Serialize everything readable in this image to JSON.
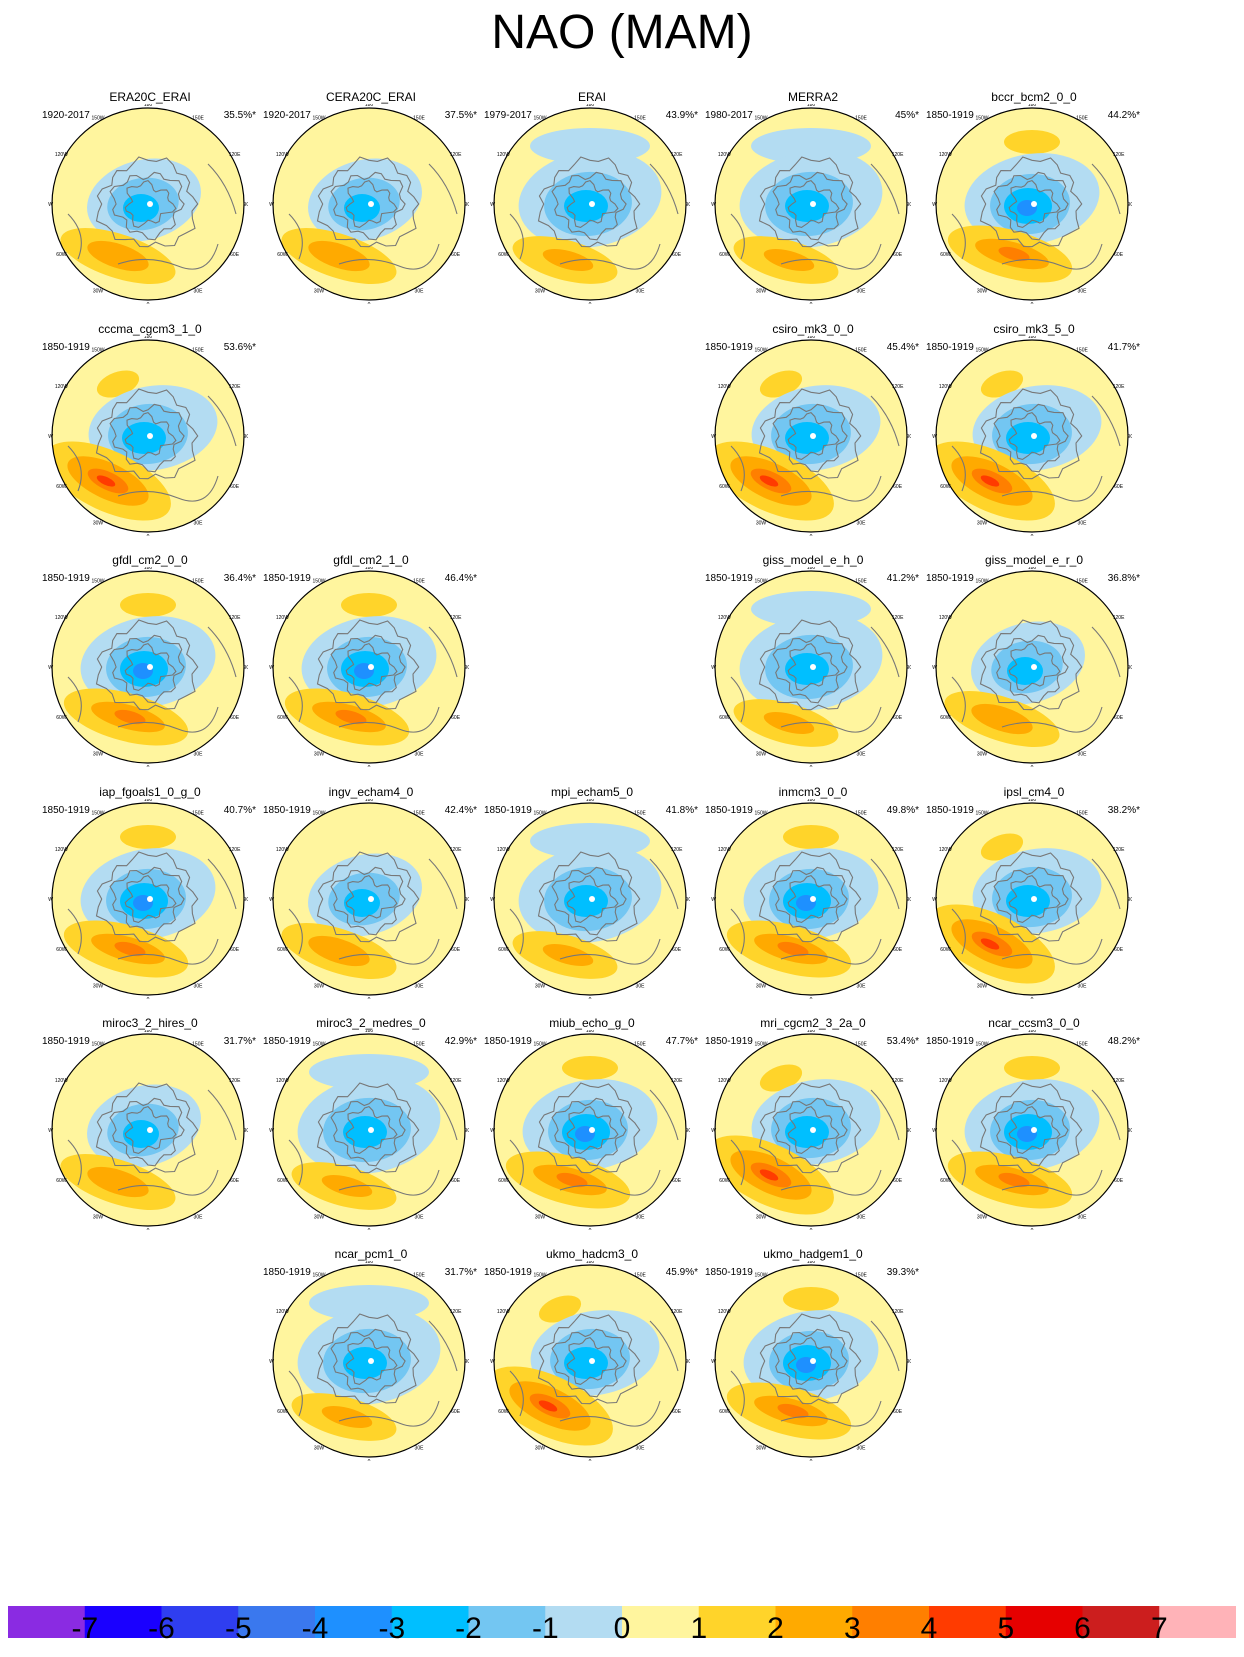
{
  "title": "NAO (MAM)",
  "panels": [
    {
      "name": "ERA20C_ERAI",
      "period": "1920-2017",
      "pct": "35.5%*",
      "row": 0,
      "col": 0,
      "variant": 1
    },
    {
      "name": "CERA20C_ERAI",
      "period": "1920-2017",
      "pct": "37.5%*",
      "row": 0,
      "col": 1,
      "variant": 1
    },
    {
      "name": "ERAI",
      "period": "1979-2017",
      "pct": "43.9%*",
      "row": 0,
      "col": 2,
      "variant": 2
    },
    {
      "name": "MERRA2",
      "period": "1980-2017",
      "pct": "45%*",
      "row": 0,
      "col": 3,
      "variant": 2
    },
    {
      "name": "bccr_bcm2_0_0",
      "period": "1850-1919",
      "pct": "44.2%*",
      "row": 0,
      "col": 4,
      "variant": 3
    },
    {
      "name": "cccma_cgcm3_1_0",
      "period": "1850-1919",
      "pct": "53.6%*",
      "row": 1,
      "col": 0,
      "variant": 4
    },
    {
      "name": "csiro_mk3_0_0",
      "period": "1850-1919",
      "pct": "45.4%*",
      "row": 1,
      "col": 3,
      "variant": 4
    },
    {
      "name": "csiro_mk3_5_0",
      "period": "1850-1919",
      "pct": "41.7%*",
      "row": 1,
      "col": 4,
      "variant": 4
    },
    {
      "name": "gfdl_cm2_0_0",
      "period": "1850-1919",
      "pct": "36.4%*",
      "row": 2,
      "col": 0,
      "variant": 3
    },
    {
      "name": "gfdl_cm2_1_0",
      "period": "1850-1919",
      "pct": "46.4%*",
      "row": 2,
      "col": 1,
      "variant": 3
    },
    {
      "name": "giss_model_e_h_0",
      "period": "1850-1919",
      "pct": "41.2%*",
      "row": 2,
      "col": 3,
      "variant": 2
    },
    {
      "name": "giss_model_e_r_0",
      "period": "1850-1919",
      "pct": "36.8%*",
      "row": 2,
      "col": 4,
      "variant": 1
    },
    {
      "name": "iap_fgoals1_0_g_0",
      "period": "1850-1919",
      "pct": "40.7%*",
      "row": 3,
      "col": 0,
      "variant": 3
    },
    {
      "name": "ingv_echam4_0",
      "period": "1850-1919",
      "pct": "42.4%*",
      "row": 3,
      "col": 1,
      "variant": 1
    },
    {
      "name": "mpi_echam5_0",
      "period": "1850-1919",
      "pct": "41.8%*",
      "row": 3,
      "col": 2,
      "variant": 2
    },
    {
      "name": "inmcm3_0_0",
      "period": "1850-1919",
      "pct": "49.8%*",
      "row": 3,
      "col": 3,
      "variant": 3
    },
    {
      "name": "ipsl_cm4_0",
      "period": "1850-1919",
      "pct": "38.2%*",
      "row": 3,
      "col": 4,
      "variant": 4
    },
    {
      "name": "miroc3_2_hires_0",
      "period": "1850-1919",
      "pct": "31.7%*",
      "row": 4,
      "col": 0,
      "variant": 1
    },
    {
      "name": "miroc3_2_medres_0",
      "period": "1850-1919",
      "pct": "42.9%*",
      "row": 4,
      "col": 1,
      "variant": 2
    },
    {
      "name": "miub_echo_g_0",
      "period": "1850-1919",
      "pct": "47.7%*",
      "row": 4,
      "col": 2,
      "variant": 3
    },
    {
      "name": "mri_cgcm2_3_2a_0",
      "period": "1850-1919",
      "pct": "53.4%*",
      "row": 4,
      "col": 3,
      "variant": 4
    },
    {
      "name": "ncar_ccsm3_0_0",
      "period": "1850-1919",
      "pct": "48.2%*",
      "row": 4,
      "col": 4,
      "variant": 3
    },
    {
      "name": "ncar_pcm1_0",
      "period": "1850-1919",
      "pct": "31.7%*",
      "row": 5,
      "col": 1,
      "variant": 2
    },
    {
      "name": "ukmo_hadcm3_0",
      "period": "1850-1919",
      "pct": "45.9%*",
      "row": 5,
      "col": 2,
      "variant": 4
    },
    {
      "name": "ukmo_hadgem1_0",
      "period": "1850-1919",
      "pct": "39.3%*",
      "row": 5,
      "col": 3,
      "variant": 3
    }
  ],
  "lon_labels": [
    "180",
    "150E",
    "120E",
    "90E",
    "60E",
    "30E",
    "0",
    "30W",
    "60W",
    "90W",
    "120W",
    "150W"
  ],
  "colorbar": {
    "colors": [
      "#8a2be2",
      "#1a00ff",
      "#2f3ef0",
      "#3a78ee",
      "#1e90ff",
      "#00bfff",
      "#73c6f2",
      "#b3dcf2",
      "#fff59e",
      "#ffd42a",
      "#ffaa00",
      "#ff7f00",
      "#ff3b00",
      "#e60000",
      "#cc1e1e",
      "#ffb3b8"
    ],
    "labels": [
      "-7",
      "-6",
      "-5",
      "-4",
      "-3",
      "-2",
      "-1",
      "0",
      "1",
      "2",
      "3",
      "4",
      "5",
      "6",
      "7"
    ]
  },
  "icons": {
    "map": "polar-stereographic-map-icon"
  }
}
